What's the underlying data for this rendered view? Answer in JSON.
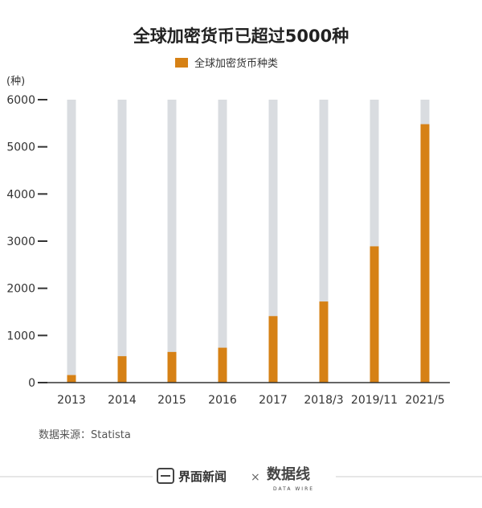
{
  "colors": {
    "bar": "#D68115",
    "track": "#D9DCE0",
    "axis": "#333333"
  },
  "footer": {
    "brand_name": "界面新闻",
    "separator": "×",
    "partner_logo": "数据线",
    "partner_logo_sub": "DATA WIRE"
  },
  "chart_data": {
    "type": "bar",
    "title": "全球加密货币已超过5000种",
    "ylabel": "(种)",
    "legend": [
      "全球加密货币种类"
    ],
    "legend_position": "top-center",
    "categories": [
      "2013",
      "2014",
      "2015",
      "2016",
      "2017",
      "2018/3",
      "2019/11",
      "2021/5"
    ],
    "series": [
      {
        "name": "全球加密货币种类",
        "values": [
          160,
          560,
          650,
          740,
          1410,
          1720,
          2890,
          5480
        ]
      }
    ],
    "ylim": [
      0,
      6000
    ],
    "yticks": [
      0,
      1000,
      2000,
      3000,
      4000,
      5000,
      6000
    ],
    "grid": false,
    "source": "数据来源：Statista"
  }
}
